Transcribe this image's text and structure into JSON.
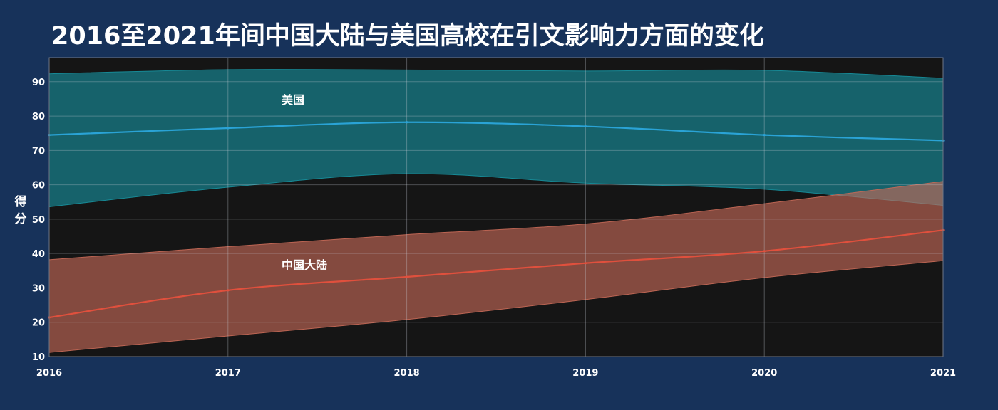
{
  "chart_data": {
    "type": "area",
    "title": "2016至2021年间中国大陆与美国高校在引文影响力方面的变化",
    "xlabel": "",
    "ylabel": "得分",
    "x": [
      2016,
      2017,
      2018,
      2019,
      2020,
      2021
    ],
    "xlim": [
      2016,
      2021
    ],
    "ylim": [
      10,
      97
    ],
    "yticks": [
      10,
      20,
      30,
      40,
      50,
      60,
      70,
      80,
      90
    ],
    "grid": true,
    "legend": "none",
    "series": [
      {
        "name": "美国",
        "color": "#2aa3d6",
        "band_color": "#17919f",
        "label_at": [
          2017.3,
          83.5
        ],
        "values": [
          74.5,
          76.5,
          78.2,
          77.0,
          74.5,
          72.9
        ],
        "upper": [
          92.3,
          93.5,
          93.4,
          93.1,
          93.3,
          91.0
        ],
        "lower": [
          53.6,
          59.3,
          63.2,
          60.5,
          58.7,
          54.0
        ]
      },
      {
        "name": "中国大陆",
        "color": "#e0503d",
        "band_color": "#c86a58",
        "label_at": [
          2017.3,
          35.5
        ],
        "values": [
          21.4,
          29.3,
          33.2,
          37.2,
          40.7,
          46.8
        ],
        "upper": [
          38.2,
          42.0,
          45.5,
          48.6,
          54.5,
          61.0
        ],
        "lower": [
          11.2,
          16.0,
          20.8,
          26.6,
          33.0,
          37.9
        ]
      }
    ]
  }
}
